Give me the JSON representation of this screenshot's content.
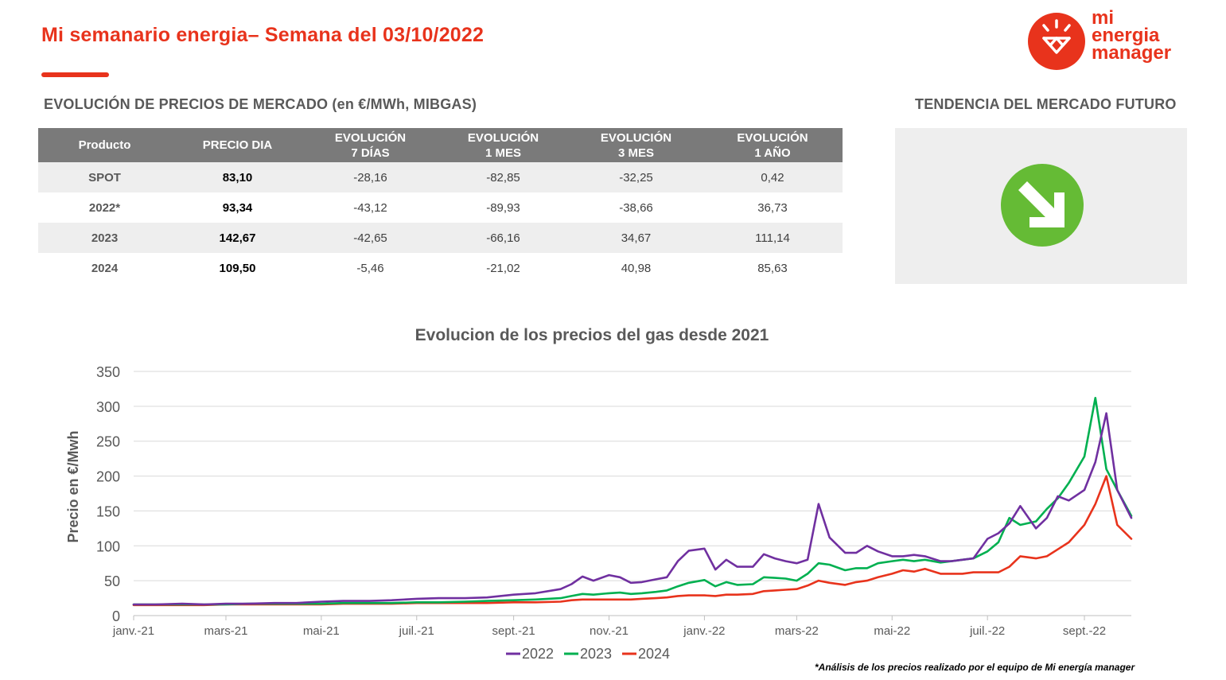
{
  "header": {
    "title": "Mi semanario energia– Semana del 03/10/2022",
    "accent_color": "#e8331c"
  },
  "logo": {
    "line1": "mi",
    "line2": "energia",
    "line3": "manager"
  },
  "market_prices": {
    "heading": "EVOLUCIÓN DE PRECIOS DE MERCADO (en €/MWh, MIBGAS)",
    "columns": [
      {
        "line1": "Producto",
        "line2": ""
      },
      {
        "line1": "PRECIO DIA",
        "line2": ""
      },
      {
        "line1": "EVOLUCIÓN",
        "line2": "7 DÍAS"
      },
      {
        "line1": "EVOLUCIÓN",
        "line2": "1 MES"
      },
      {
        "line1": "EVOLUCIÓN",
        "line2": "3 MES"
      },
      {
        "line1": "EVOLUCIÓN",
        "line2": "1 AÑO"
      }
    ],
    "rows": [
      [
        "SPOT",
        "83,10",
        "-28,16",
        "-82,85",
        "-32,25",
        "0,42"
      ],
      [
        "2022*",
        "93,34",
        "-43,12",
        "-89,93",
        "-38,66",
        "36,73"
      ],
      [
        "2023",
        "142,67",
        "-42,65",
        "-66,16",
        "34,67",
        "111,14"
      ],
      [
        "2024",
        "109,50",
        "-5,46",
        "-21,02",
        "40,98",
        "85,63"
      ]
    ]
  },
  "trend": {
    "heading": "TENDENCIA DEL MERCADO FUTURO",
    "icon": "down-right-arrow-icon",
    "color": "#65bb35"
  },
  "chart_data": {
    "type": "line",
    "title": "Evolucion de los precios del gas desde 2021",
    "xlabel": "",
    "ylabel": "Precio en €/Mwh",
    "ylim": [
      0,
      350
    ],
    "yticks": [
      0,
      50,
      100,
      150,
      200,
      250,
      300,
      350
    ],
    "grid": true,
    "legend_position": "bottom",
    "x_tick_labels": [
      "janv.-21",
      "mars-21",
      "mai-21",
      "juil.-21",
      "sept.-21",
      "nov.-21",
      "janv.-22",
      "mars-22",
      "mai-22",
      "juil.-22",
      "sept.-22"
    ],
    "x": [
      "2021-01-01",
      "2021-01-15",
      "2021-02-01",
      "2021-02-15",
      "2021-03-01",
      "2021-03-15",
      "2021-04-01",
      "2021-04-15",
      "2021-05-01",
      "2021-05-15",
      "2021-06-01",
      "2021-06-15",
      "2021-07-01",
      "2021-07-15",
      "2021-08-01",
      "2021-08-15",
      "2021-09-01",
      "2021-09-15",
      "2021-10-01",
      "2021-10-08",
      "2021-10-15",
      "2021-10-22",
      "2021-11-01",
      "2021-11-08",
      "2021-11-15",
      "2021-11-22",
      "2021-12-01",
      "2021-12-08",
      "2021-12-15",
      "2021-12-22",
      "2022-01-01",
      "2022-01-08",
      "2022-01-15",
      "2022-01-22",
      "2022-02-01",
      "2022-02-08",
      "2022-02-15",
      "2022-02-22",
      "2022-03-01",
      "2022-03-08",
      "2022-03-15",
      "2022-03-22",
      "2022-04-01",
      "2022-04-08",
      "2022-04-15",
      "2022-04-22",
      "2022-05-01",
      "2022-05-08",
      "2022-05-15",
      "2022-05-22",
      "2022-06-01",
      "2022-06-08",
      "2022-06-15",
      "2022-06-22",
      "2022-07-01",
      "2022-07-08",
      "2022-07-15",
      "2022-07-22",
      "2022-08-01",
      "2022-08-08",
      "2022-08-15",
      "2022-08-22",
      "2022-09-01",
      "2022-09-08",
      "2022-09-15",
      "2022-09-22",
      "2022-10-01"
    ],
    "series": [
      {
        "name": "2022",
        "color": "#7030a0",
        "values": [
          16,
          16,
          17,
          16,
          17,
          17,
          18,
          18,
          20,
          21,
          21,
          22,
          24,
          25,
          25,
          26,
          30,
          32,
          38,
          45,
          56,
          50,
          58,
          55,
          47,
          48,
          52,
          55,
          78,
          93,
          96,
          66,
          80,
          70,
          70,
          88,
          82,
          78,
          75,
          80,
          160,
          112,
          90,
          90,
          100,
          92,
          85,
          85,
          87,
          85,
          78,
          78,
          80,
          82,
          110,
          118,
          132,
          157,
          125,
          140,
          171,
          165,
          180,
          220,
          290,
          180,
          140
        ]
      },
      {
        "name": "2023",
        "color": "#00b050",
        "values": [
          16,
          16,
          16,
          16,
          16,
          17,
          17,
          17,
          17,
          18,
          18,
          18,
          19,
          19,
          20,
          21,
          22,
          23,
          25,
          28,
          31,
          30,
          32,
          33,
          31,
          32,
          34,
          36,
          42,
          47,
          51,
          42,
          48,
          44,
          45,
          55,
          54,
          53,
          50,
          60,
          75,
          73,
          65,
          68,
          68,
          75,
          78,
          80,
          78,
          80,
          76,
          78,
          80,
          82,
          92,
          105,
          140,
          130,
          135,
          153,
          168,
          190,
          228,
          312,
          210,
          180,
          143
        ]
      },
      {
        "name": "2024",
        "color": "#e8331c",
        "values": [
          15,
          15,
          15,
          15,
          16,
          16,
          16,
          16,
          16,
          17,
          17,
          17,
          18,
          18,
          18,
          18,
          19,
          19,
          20,
          22,
          23,
          23,
          23,
          23,
          23,
          24,
          25,
          26,
          28,
          29,
          29,
          28,
          30,
          30,
          31,
          35,
          36,
          37,
          38,
          43,
          50,
          47,
          44,
          48,
          50,
          55,
          60,
          65,
          63,
          67,
          60,
          60,
          60,
          62,
          62,
          62,
          70,
          85,
          82,
          85,
          95,
          105,
          130,
          160,
          200,
          130,
          110
        ]
      }
    ]
  },
  "footnote": "*Análisis de los precios realizado por el equipo de Mi energía manager"
}
